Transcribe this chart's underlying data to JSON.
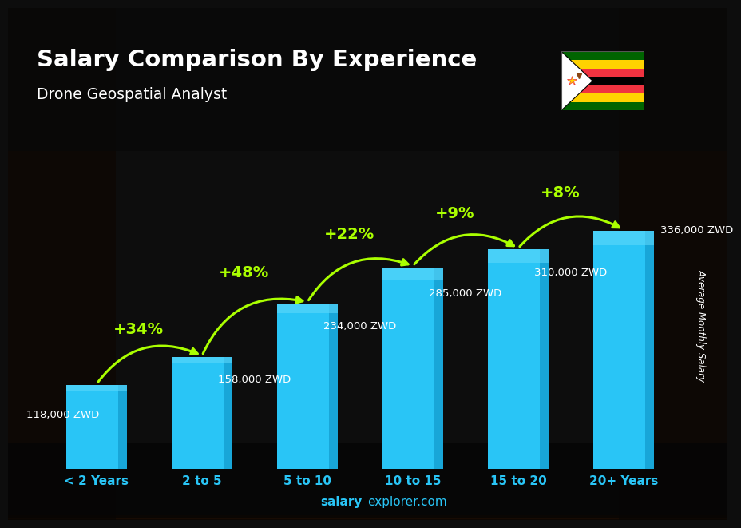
{
  "title": "Salary Comparison By Experience",
  "subtitle": "Drone Geospatial Analyst",
  "categories": [
    "< 2 Years",
    "2 to 5",
    "5 to 10",
    "10 to 15",
    "15 to 20",
    "20+ Years"
  ],
  "values": [
    118000,
    158000,
    234000,
    285000,
    310000,
    336000
  ],
  "labels": [
    "118,000 ZWD",
    "158,000 ZWD",
    "234,000 ZWD",
    "285,000 ZWD",
    "310,000 ZWD",
    "336,000 ZWD"
  ],
  "pct_changes": [
    "+34%",
    "+48%",
    "+22%",
    "+9%",
    "+8%"
  ],
  "bar_color_main": "#29C5F6",
  "bar_color_light": "#5DD8FA",
  "bar_color_dark": "#1299CC",
  "background_top": "#1a1a2e",
  "title_color": "#ffffff",
  "subtitle_color": "#ffffff",
  "label_color": "#ffffff",
  "pct_color": "#aaff00",
  "xlabel_color": "#29C5F6",
  "ylabel_text": "Average Monthly Salary",
  "footer_salary": "salary",
  "footer_rest": "explorer.com",
  "ylim": [
    0,
    420000
  ],
  "bar_width": 0.58
}
